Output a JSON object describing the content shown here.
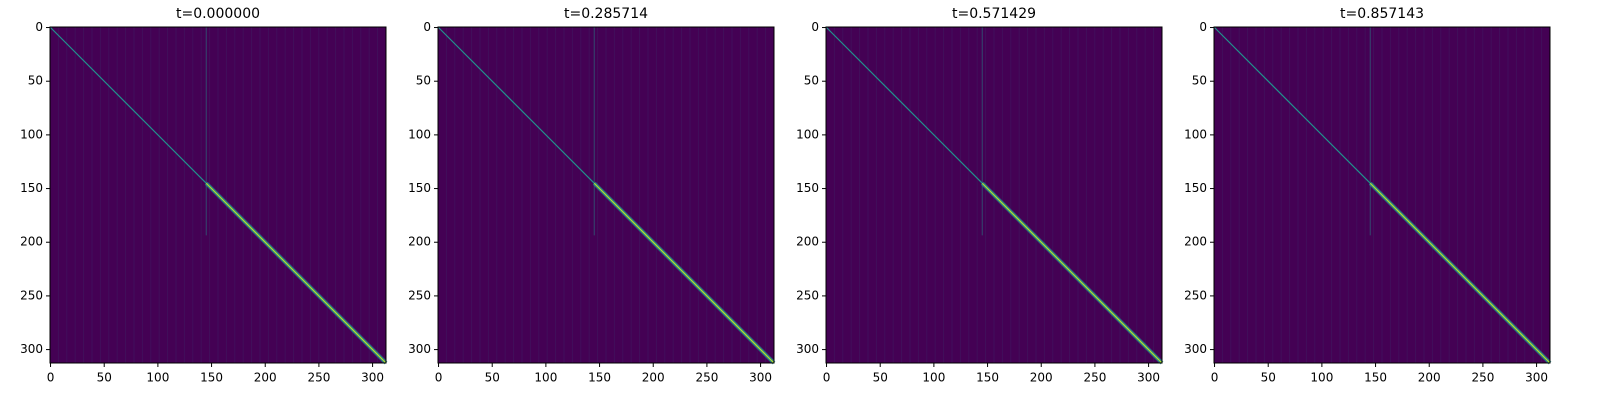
{
  "chart_data": [
    {
      "type": "heatmap",
      "title": "t=0.000000",
      "colormap": "viridis",
      "xlim": [
        -0.5,
        312.5
      ],
      "ylim": [
        312.5,
        -0.5
      ],
      "xticks": [
        0,
        50,
        100,
        150,
        200,
        250,
        300
      ],
      "yticks": [
        0,
        50,
        100,
        150,
        200,
        250,
        300
      ]
    },
    {
      "type": "heatmap",
      "title": "t=0.285714",
      "colormap": "viridis",
      "xlim": [
        -0.5,
        312.5
      ],
      "ylim": [
        312.5,
        -0.5
      ],
      "xticks": [
        0,
        50,
        100,
        150,
        200,
        250,
        300
      ],
      "yticks": [
        0,
        50,
        100,
        150,
        200,
        250,
        300
      ]
    },
    {
      "type": "heatmap",
      "title": "t=0.571429",
      "colormap": "viridis",
      "xlim": [
        -0.5,
        312.5
      ],
      "ylim": [
        312.5,
        -0.5
      ],
      "xticks": [
        0,
        50,
        100,
        150,
        200,
        250,
        300
      ],
      "yticks": [
        0,
        50,
        100,
        150,
        200,
        250,
        300
      ]
    },
    {
      "type": "heatmap",
      "title": "t=0.857143",
      "colormap": "viridis",
      "xlim": [
        -0.5,
        312.5
      ],
      "ylim": [
        312.5,
        -0.5
      ],
      "xticks": [
        0,
        50,
        100,
        150,
        200,
        250,
        300
      ],
      "yticks": [
        0,
        50,
        100,
        150,
        200,
        250,
        300
      ]
    }
  ]
}
